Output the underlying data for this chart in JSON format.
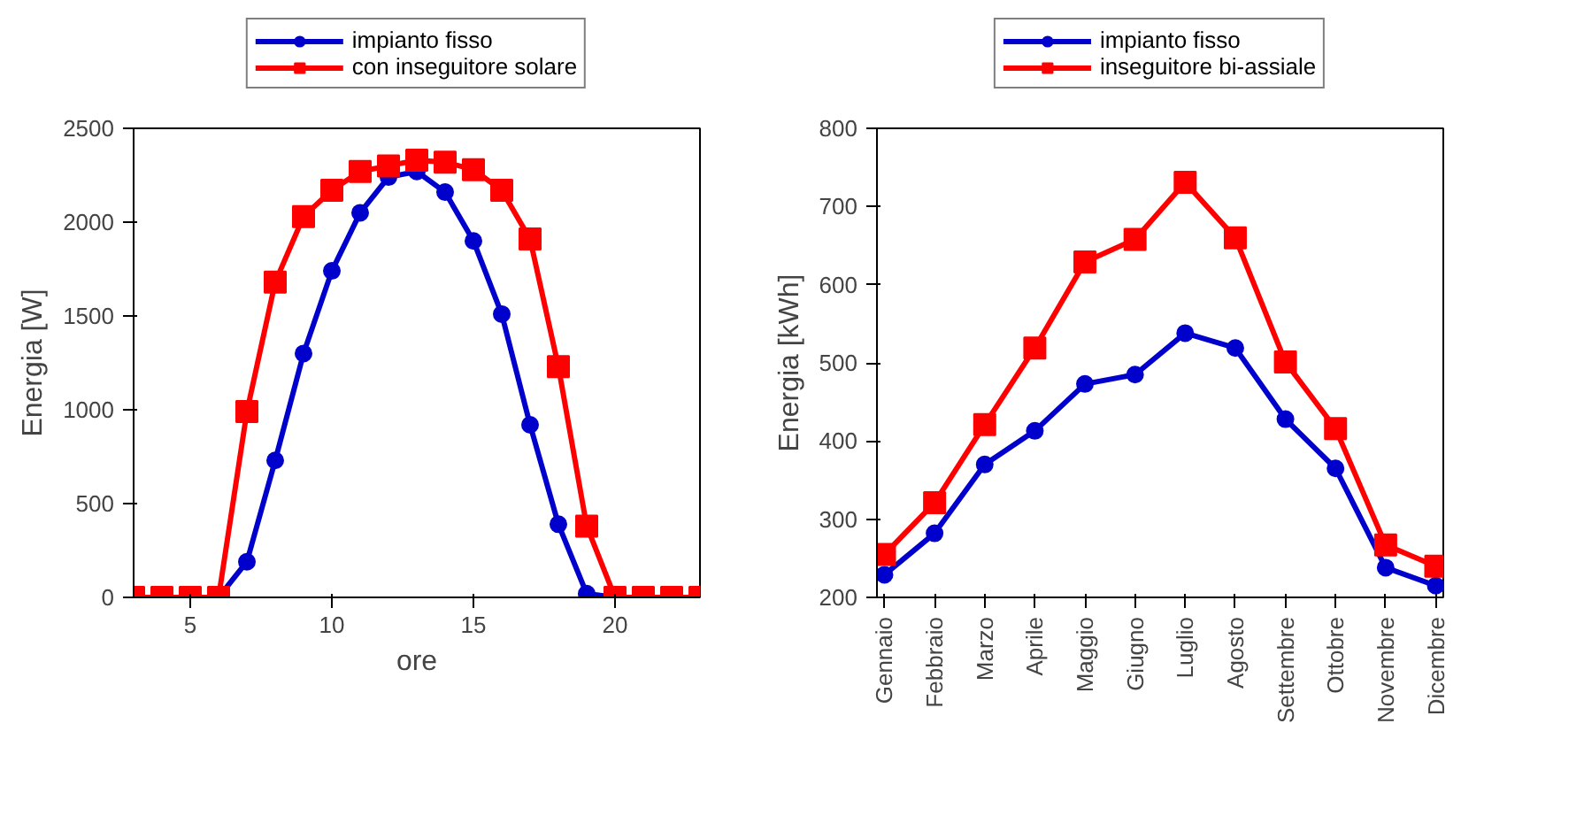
{
  "chart_data": [
    {
      "type": "line",
      "xlabel": "ore",
      "ylabel": "Energia [W]",
      "x": [
        3,
        4,
        5,
        6,
        7,
        8,
        9,
        10,
        11,
        12,
        13,
        14,
        15,
        16,
        17,
        18,
        19,
        20,
        21,
        22,
        23
      ],
      "xlim": [
        3,
        23
      ],
      "xticks": [
        5,
        10,
        15,
        20
      ],
      "ylim": [
        0,
        2500
      ],
      "yticks": [
        0,
        500,
        1000,
        1500,
        2000,
        2500
      ],
      "grid": false,
      "legend": "top",
      "series": [
        {
          "name": "impianto fisso",
          "color": "#0000cc",
          "marker": "circle",
          "x": [
            5,
            6,
            7,
            8,
            9,
            10,
            11,
            12,
            13,
            14,
            15,
            16,
            17,
            18,
            19,
            20
          ],
          "values": [
            0,
            0,
            190,
            730,
            1300,
            1740,
            2050,
            2240,
            2270,
            2160,
            1900,
            1510,
            920,
            390,
            20,
            0
          ]
        },
        {
          "name": "con inseguitore solare",
          "color": "#ff0000",
          "marker": "square",
          "values": [
            0,
            0,
            0,
            0,
            990,
            1680,
            2030,
            2170,
            2270,
            2300,
            2330,
            2320,
            2280,
            2170,
            1910,
            1230,
            380,
            0,
            0,
            0,
            0
          ]
        }
      ]
    },
    {
      "type": "line",
      "ylabel": "Energia [kWh]",
      "categories": [
        "Gennaio",
        "Febbraio",
        "Marzo",
        "Aprile",
        "Maggio",
        "Giugno",
        "Luglio",
        "Agosto",
        "Settembre",
        "Ottobre",
        "Novembre",
        "Dicembre"
      ],
      "ylim": [
        200,
        800
      ],
      "yticks": [
        200,
        300,
        400,
        500,
        600,
        700,
        800
      ],
      "grid": false,
      "legend": "top",
      "series": [
        {
          "name": "impianto fisso",
          "color": "#0000cc",
          "marker": "circle",
          "values": [
            229,
            282,
            370,
            413,
            473,
            485,
            538,
            519,
            428,
            365,
            238,
            215
          ]
        },
        {
          "name": "inseguitore bi-assiale",
          "color": "#ff0000",
          "marker": "square",
          "values": [
            255,
            321,
            421,
            519,
            629,
            658,
            731,
            660,
            501,
            416,
            267,
            240
          ]
        }
      ]
    }
  ]
}
